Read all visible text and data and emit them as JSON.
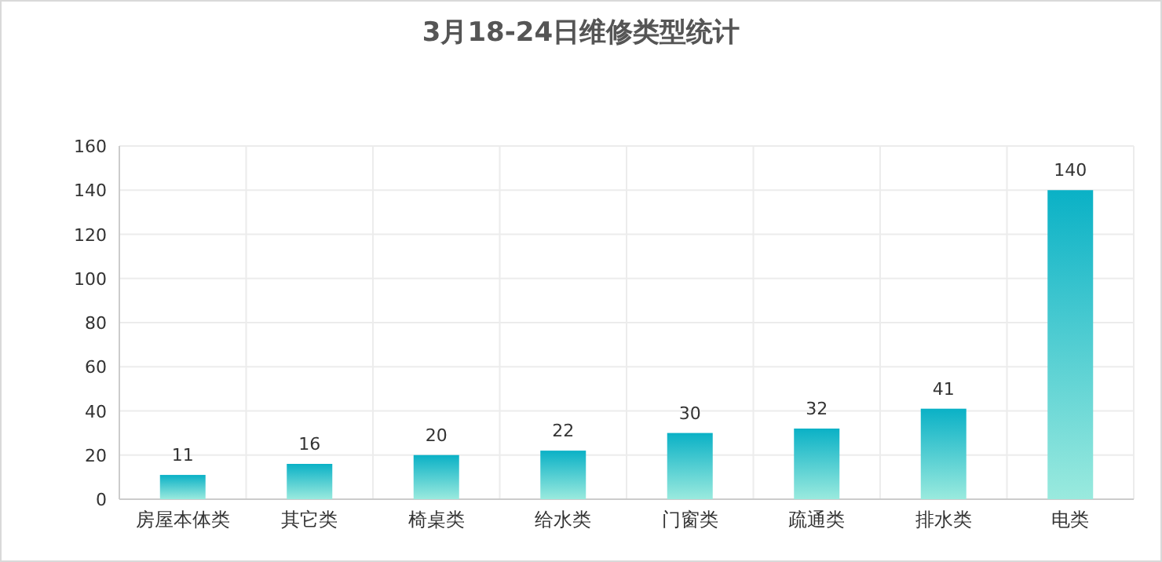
{
  "chart_data": {
    "type": "bar",
    "title": "3月18-24日维修类型统计",
    "categories": [
      "房屋本体类",
      "其它类",
      "椅桌类",
      "给水类",
      "门窗类",
      "疏通类",
      "排水类",
      "电类"
    ],
    "values": [
      11,
      16,
      20,
      22,
      30,
      32,
      41,
      140
    ],
    "color": "#0ab1c6",
    "ylim": [
      0,
      160
    ],
    "yticks": [
      0,
      20,
      40,
      60,
      80,
      100,
      120,
      140,
      160
    ],
    "grid": true,
    "data_labels": true
  }
}
